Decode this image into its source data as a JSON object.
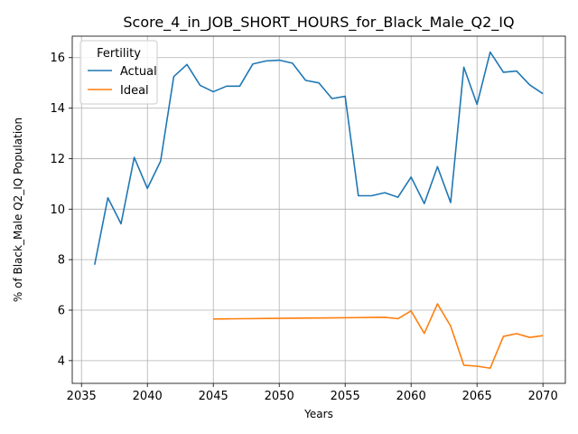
{
  "chart_data": {
    "type": "line",
    "title": "Score_4_in_JOB_SHORT_HOURS_for_Black_Male_Q2_IQ",
    "xlabel": "Years",
    "ylabel": "% of Black_Male Q2_IQ Population",
    "xlim": [
      2034.3,
      2071.7
    ],
    "ylim": [
      3.1,
      16.85
    ],
    "xticks": [
      2035,
      2040,
      2045,
      2050,
      2055,
      2060,
      2065,
      2070
    ],
    "yticks": [
      4,
      6,
      8,
      10,
      12,
      14,
      16
    ],
    "grid": true,
    "legend": {
      "title": "Fertility",
      "placement": "top-left"
    },
    "series": [
      {
        "name": "Actual",
        "color": "#1f77b4",
        "x": [
          2036,
          2037,
          2038,
          2039,
          2040,
          2041,
          2042,
          2043,
          2044,
          2045,
          2046,
          2047,
          2048,
          2049,
          2050,
          2051,
          2052,
          2053,
          2054,
          2055,
          2056,
          2057,
          2058,
          2059,
          2060,
          2061,
          2062,
          2063,
          2064,
          2065,
          2066,
          2067,
          2068,
          2069,
          2070
        ],
        "y": [
          7.8,
          10.45,
          9.42,
          12.05,
          10.82,
          11.9,
          15.25,
          15.73,
          14.9,
          14.65,
          14.87,
          14.87,
          15.75,
          15.87,
          15.9,
          15.78,
          15.1,
          15.0,
          14.38,
          14.47,
          10.53,
          10.53,
          10.65,
          10.47,
          11.27,
          10.22,
          11.68,
          10.26,
          15.62,
          14.15,
          16.22,
          15.42,
          15.47,
          14.92,
          14.57
        ]
      },
      {
        "name": "Ideal",
        "color": "#ff7f0e",
        "x": [
          2045,
          2046,
          2047,
          2048,
          2049,
          2050,
          2051,
          2052,
          2053,
          2054,
          2055,
          2056,
          2057,
          2058,
          2059,
          2060,
          2061,
          2062,
          2063,
          2064,
          2065,
          2066,
          2067,
          2068,
          2069,
          2070
        ],
        "y": [
          5.65,
          5.655,
          5.66,
          5.665,
          5.67,
          5.675,
          5.68,
          5.685,
          5.69,
          5.695,
          5.7,
          5.705,
          5.71,
          5.715,
          5.66,
          5.97,
          5.08,
          6.25,
          5.37,
          3.82,
          3.78,
          3.7,
          4.96,
          5.07,
          4.92,
          4.99
        ]
      }
    ]
  }
}
